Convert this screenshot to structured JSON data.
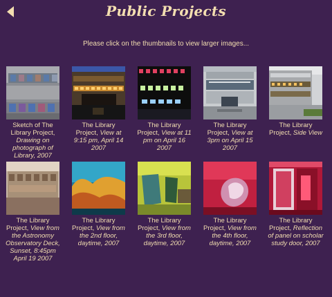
{
  "header": {
    "title": "Public Projects"
  },
  "instructions": "Please click on the thumbnails to view larger images...",
  "icons": {
    "back": "back-arrow-icon"
  },
  "colors": {
    "background": "#3e2150",
    "text": "#f3deb0"
  },
  "projects": [
    {
      "caption_a": "Sketch of The Library Project, ",
      "caption_b": "Drawing on photograph of Library, 2007"
    },
    {
      "caption_a": "The Library Project, ",
      "caption_b": "View at 9:15 pm, April 14 2007"
    },
    {
      "caption_a": "The Library Project, ",
      "caption_b": "View at 11 pm on April 16 2007"
    },
    {
      "caption_a": "The Library Project, ",
      "caption_b": "View at 3pm on April 15 2007"
    },
    {
      "caption_a": "The Library Project, ",
      "caption_b": "Side View"
    },
    {
      "caption_a": "The Library Project, ",
      "caption_b": "View from the Astronomy Observatory Deck, Sunset, 8:45pm April 19 2007"
    },
    {
      "caption_a": "The Library Project, ",
      "caption_b": "View from the 2nd floor, daytime, 2007"
    },
    {
      "caption_a": "The Library Project, ",
      "caption_b": "View from the 3rd floor, daytime, 2007"
    },
    {
      "caption_a": "The Library Project, ",
      "caption_b": "View from the 4th floor, daytime, 2007"
    },
    {
      "caption_a": "The Library Project, ",
      "caption_b": "Reflection of panel on scholar study door, 2007"
    }
  ]
}
